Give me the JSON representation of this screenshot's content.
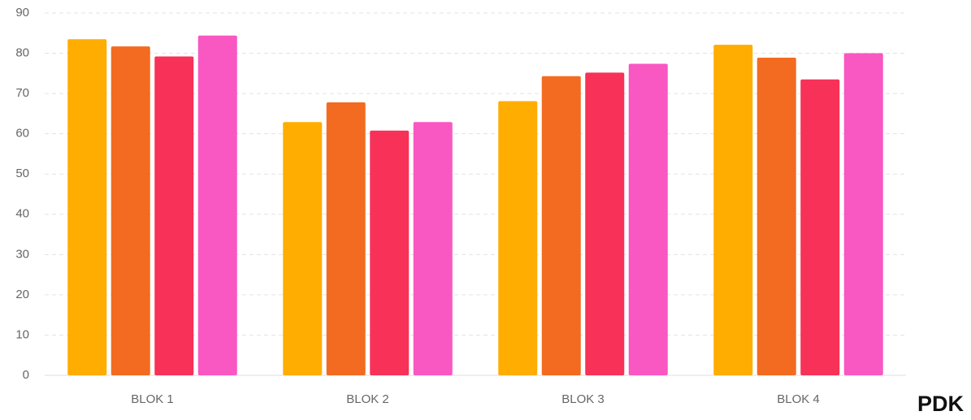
{
  "chart_data": {
    "type": "bar",
    "categories": [
      "BLOK 1",
      "BLOK 2",
      "BLOK 3",
      "BLOK 4"
    ],
    "series": [
      {
        "color": "#ffad00",
        "values": [
          83.5,
          62.9,
          68.1,
          82.1
        ]
      },
      {
        "color": "#f26b21",
        "values": [
          81.7,
          67.8,
          74.3,
          78.9
        ]
      },
      {
        "color": "#f73157",
        "values": [
          79.2,
          60.8,
          75.2,
          73.5
        ]
      },
      {
        "color": "#f957c1",
        "values": [
          84.4,
          62.9,
          77.4,
          80.0
        ]
      }
    ],
    "ylim": [
      0,
      90
    ],
    "yticks": [
      0,
      10,
      20,
      30,
      40,
      50,
      60,
      70,
      80,
      90
    ],
    "grid": true,
    "annotation": "PDK"
  }
}
